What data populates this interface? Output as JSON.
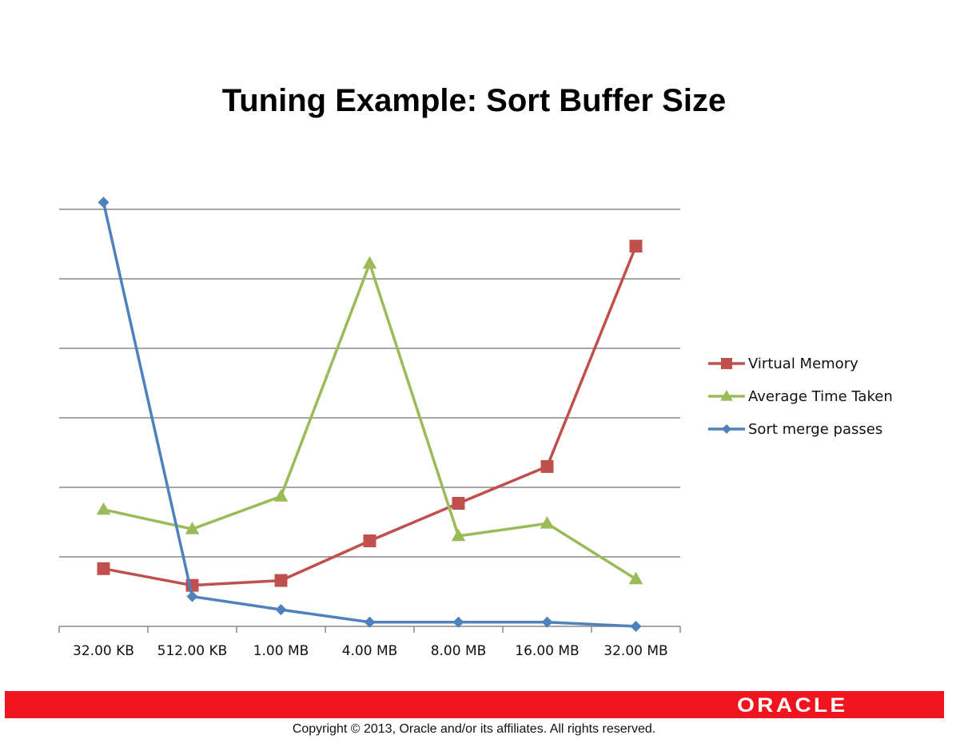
{
  "slide": {
    "title": "Tuning Example: Sort Buffer Size",
    "brand": "ORACLE",
    "copyright": "Copyright © 2013, Oracle and/or its affiliates. All rights reserved."
  },
  "chart_data": {
    "type": "line",
    "title": "Tuning Example: Sort Buffer Size",
    "xlabel": "",
    "ylabel": "",
    "ylim": [
      0,
      6
    ],
    "grid": true,
    "legend_position": "right",
    "categories": [
      "32.00 KB",
      "512.00 KB",
      "1.00 MB",
      "4.00 MB",
      "8.00 MB",
      "16.00 MB",
      "32.00 MB"
    ],
    "series": [
      {
        "name": "Virtual Memory",
        "color": "#c0504d",
        "marker": "square",
        "values": [
          0.83,
          0.59,
          0.66,
          1.23,
          1.77,
          2.3,
          5.47
        ]
      },
      {
        "name": "Average Time Taken",
        "color": "#9bbb59",
        "marker": "triangle",
        "values": [
          1.68,
          1.4,
          1.87,
          5.22,
          1.3,
          1.48,
          0.68
        ]
      },
      {
        "name": "Sort merge passes",
        "color": "#4f81bd",
        "marker": "diamond",
        "values": [
          6.1,
          0.43,
          0.24,
          0.06,
          0.06,
          0.06,
          0.0
        ]
      }
    ]
  }
}
